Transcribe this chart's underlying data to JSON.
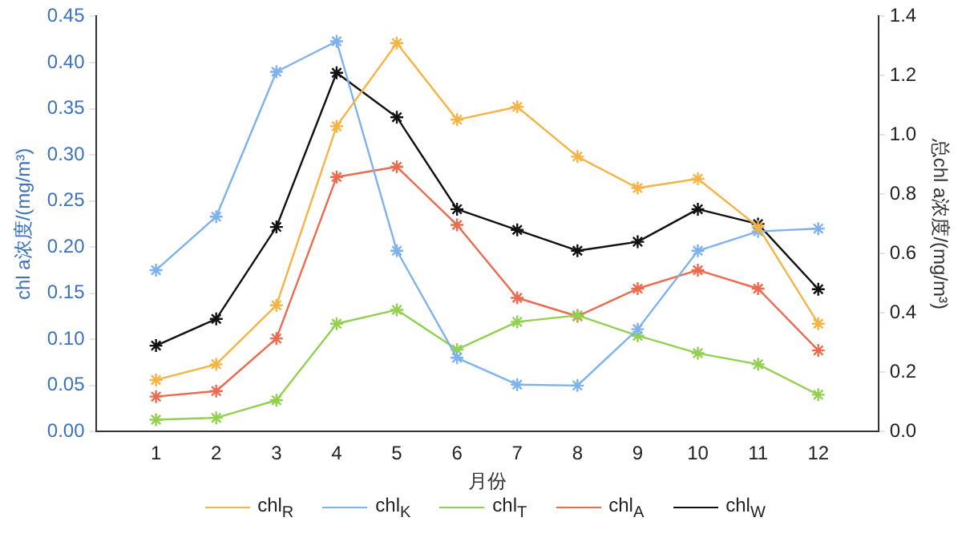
{
  "chart_data": {
    "type": "line",
    "xlabel": "月份",
    "ylabel": "chl a浓度/(mg/m³)",
    "y2label": "总chl a浓度/(mg/m³)",
    "x": [
      1,
      2,
      3,
      4,
      5,
      6,
      7,
      8,
      9,
      10,
      11,
      12
    ],
    "xlim": [
      0,
      13
    ],
    "xticks": [
      1,
      2,
      3,
      4,
      5,
      6,
      7,
      8,
      9,
      10,
      11,
      12
    ],
    "ylim": [
      0,
      0.45
    ],
    "yticks": [
      {
        "value": 0,
        "label": "0.00"
      },
      0.05,
      {
        "value": 0.1,
        "label": "0.10"
      },
      0.15,
      {
        "value": 0.2,
        "label": "0.20"
      },
      0.25,
      {
        "value": 0.3,
        "label": "0.30"
      },
      0.35,
      {
        "value": 0.4,
        "label": "0.40"
      },
      0.45
    ],
    "y2lim": [
      0,
      1.4
    ],
    "y2ticks": [
      {
        "value": 0,
        "label": "0.0"
      },
      0.2,
      0.4,
      0.6,
      0.8,
      {
        "value": 1,
        "label": "1.0"
      },
      1.2,
      1.4
    ],
    "marker": "cross",
    "legend": "bottom",
    "series": [
      {
        "name": "chl$_{R}$",
        "color": "#f5b443",
        "values": [
          0.056,
          0.073,
          0.137,
          0.331,
          0.421,
          0.338,
          0.352,
          0.298,
          0.264,
          0.274,
          0.222,
          0.117
        ]
      },
      {
        "name": "chl$_{K}$",
        "color": "#7eb2ee",
        "values": [
          0.175,
          0.233,
          0.39,
          0.423,
          0.196,
          0.08,
          0.051,
          0.05,
          0.111,
          0.196,
          0.217,
          0.22
        ]
      },
      {
        "name": "chl$_{T}$",
        "color": "#92d050",
        "values": [
          0.013,
          0.015,
          0.034,
          0.117,
          0.132,
          0.089,
          0.119,
          0.126,
          0.104,
          0.085,
          0.073,
          0.04
        ]
      },
      {
        "name": "chl$_{A}$",
        "color": "#ee6a4f",
        "values": [
          0.038,
          0.044,
          0.101,
          0.276,
          0.287,
          0.224,
          0.145,
          0.125,
          0.155,
          0.175,
          0.155,
          0.088
        ]
      },
      {
        "name": "chl$_{W}$",
        "color": "#111111",
        "axis": "y2",
        "values": [
          0.29,
          0.38,
          0.69,
          1.21,
          1.06,
          0.75,
          0.68,
          0.61,
          0.64,
          0.75,
          0.7,
          0.48
        ]
      }
    ]
  }
}
